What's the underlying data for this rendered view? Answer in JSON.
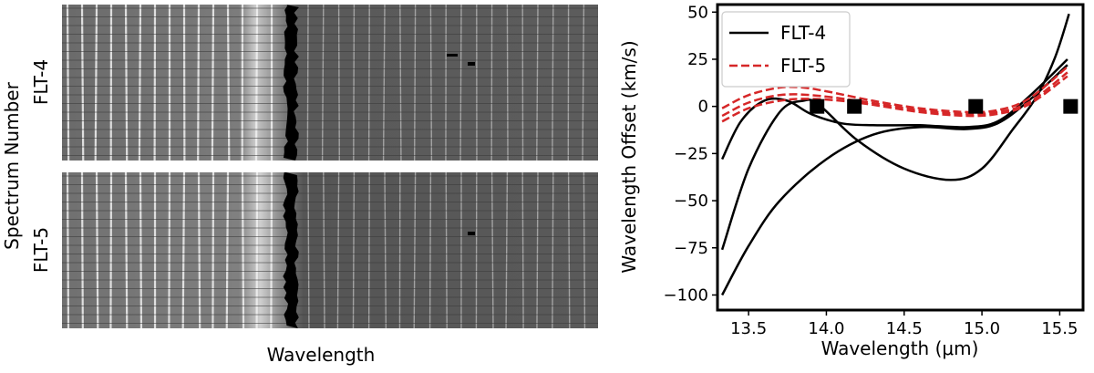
{
  "left_panel": {
    "ylabel": "Spectrum Number",
    "xlabel": "Wavelength",
    "panels": [
      {
        "label": "FLT-4"
      },
      {
        "label": "FLT-5"
      }
    ]
  },
  "chart_data": {
    "type": "line",
    "title": "",
    "xlabel": "Wavelength (μm)",
    "ylabel": "Wavelength Offset (km/s)",
    "xlim": [
      13.3,
      15.65
    ],
    "ylim": [
      -108,
      54
    ],
    "xticks": [
      13.5,
      14.0,
      14.5,
      15.0,
      15.5
    ],
    "xtick_labels": [
      "13.5",
      "14.0",
      "14.5",
      "15.0",
      "15.5"
    ],
    "yticks": [
      50,
      25,
      0,
      -25,
      -50,
      -75,
      -100
    ],
    "ytick_labels": [
      "50",
      "25",
      "0",
      "−25",
      "−50",
      "−75",
      "−100"
    ],
    "grid": false,
    "legend_position": "top-left",
    "colors": {
      "FLT-4": "#000000",
      "FLT-5": "#d62728"
    },
    "series": [
      {
        "name": "FLT-4",
        "style": "solid",
        "x": [
          13.33,
          13.45,
          13.6,
          13.75,
          13.9,
          14.1,
          14.3,
          14.6,
          14.9,
          15.1,
          15.3,
          15.55
        ],
        "y": [
          -28,
          -8,
          3,
          3,
          -4,
          -9,
          -10,
          -10,
          -11,
          -8,
          5,
          25
        ]
      },
      {
        "name": "",
        "style": "solid",
        "x": [
          13.33,
          13.5,
          13.7,
          13.85,
          13.95,
          14.2,
          14.5,
          14.8,
          15.0,
          15.2,
          15.35,
          15.47,
          15.56
        ],
        "y": [
          -76,
          -33,
          -3,
          3,
          1,
          -18,
          -33,
          -39,
          -33,
          -12,
          5,
          26,
          49
        ]
      },
      {
        "name": "",
        "style": "solid",
        "x": [
          13.33,
          13.5,
          13.7,
          14.0,
          14.3,
          14.6,
          14.9,
          15.1,
          15.3,
          15.55
        ],
        "y": [
          -100,
          -74,
          -50,
          -28,
          -15,
          -11,
          -12,
          -9,
          3,
          22
        ]
      },
      {
        "name": "FLT-5",
        "style": "dashed",
        "x": [
          13.33,
          13.5,
          13.7,
          13.85,
          14.0,
          14.3,
          14.6,
          14.9,
          15.1,
          15.3,
          15.55
        ],
        "y": [
          -1,
          6,
          10,
          10,
          8,
          3,
          -1,
          -3,
          -2,
          4,
          21
        ]
      },
      {
        "name": "",
        "style": "dashed",
        "x": [
          13.33,
          13.5,
          13.7,
          13.9,
          14.2,
          14.6,
          14.9,
          15.1,
          15.3,
          15.55
        ],
        "y": [
          -5,
          2,
          6,
          6,
          3,
          -2,
          -4,
          -3,
          2,
          18
        ]
      },
      {
        "name": "",
        "style": "dashed",
        "x": [
          13.33,
          13.5,
          13.7,
          13.9,
          14.2,
          14.6,
          14.9,
          15.1,
          15.3,
          15.55
        ],
        "y": [
          -8,
          -1,
          3,
          4,
          2,
          -3,
          -5,
          -4,
          1,
          16
        ]
      }
    ],
    "markers": {
      "shape": "square",
      "x": [
        13.94,
        14.18,
        14.96,
        15.57
      ],
      "y": [
        0,
        0,
        0,
        0
      ]
    }
  }
}
